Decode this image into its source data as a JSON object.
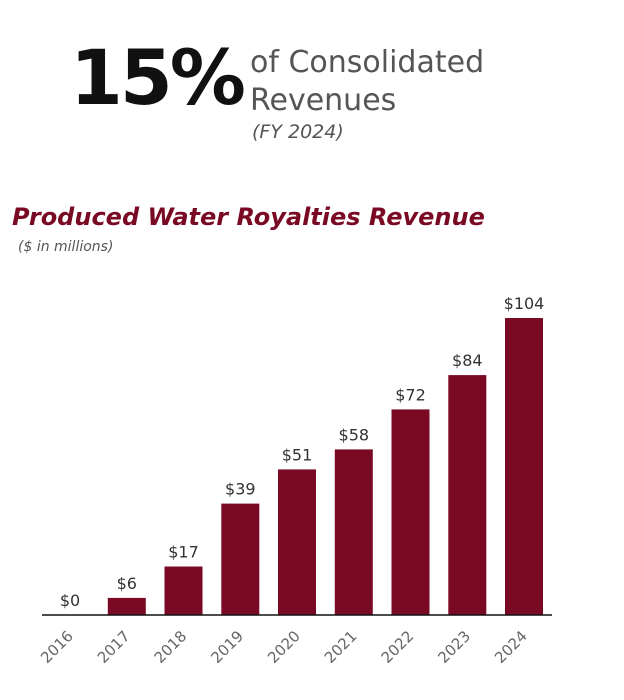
{
  "stat": {
    "value": "15%",
    "desc_line1": "of Consolidated",
    "desc_line2": "Revenues",
    "period": "(FY 2024)"
  },
  "chart_data": {
    "type": "bar",
    "title": "Produced Water Royalties Revenue",
    "subtitle": "($ in millions)",
    "categories": [
      "2016",
      "2017",
      "2018",
      "2019",
      "2020",
      "2021",
      "2022",
      "2023",
      "2024"
    ],
    "values": [
      0,
      6,
      17,
      39,
      51,
      58,
      72,
      84,
      104
    ],
    "data_labels": [
      "$0",
      "$6",
      "$17",
      "$39",
      "$51",
      "$58",
      "$72",
      "$84",
      "$104"
    ],
    "ylim": [
      0,
      104
    ],
    "grid": false,
    "bar_color": "#7a0a24"
  }
}
